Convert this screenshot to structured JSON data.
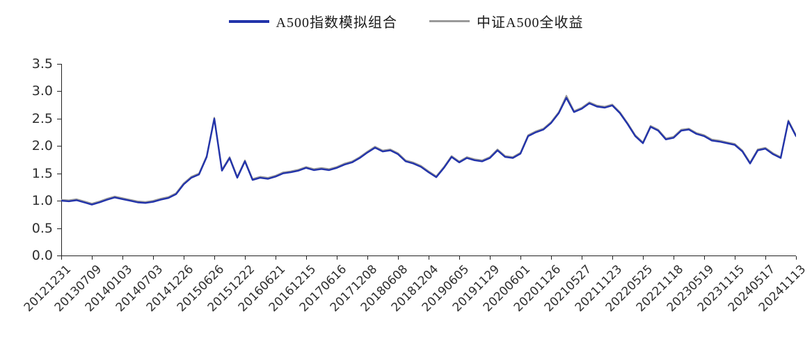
{
  "page": {
    "background": "#ffffff"
  },
  "legend": [
    {
      "label": "A500指数模拟组合",
      "color": "#2233aa"
    },
    {
      "label": "中证A500全收益",
      "color": "#9a9a9a"
    }
  ],
  "chart_data": {
    "type": "line",
    "title": "",
    "xlabel": "",
    "ylabel": "",
    "grid": false,
    "legend_position": "top-center",
    "ylim": [
      0,
      3.5
    ],
    "y_ticks": [
      0.0,
      0.5,
      1.0,
      1.5,
      2.0,
      2.5,
      3.0,
      3.5
    ],
    "x_tick_labels": [
      "20121231",
      "20130709",
      "20140103",
      "20140703",
      "20141226",
      "20150626",
      "20151222",
      "20160621",
      "20161215",
      "20170616",
      "20171208",
      "20180608",
      "20181204",
      "20190605",
      "20191129",
      "20200601",
      "20201126",
      "20210527",
      "20211123",
      "20220525",
      "20221118",
      "20230519",
      "20231115",
      "20240517",
      "20241113"
    ],
    "points_per_interval": 4,
    "series": [
      {
        "name": "中证A500全收益",
        "color": "#9a9a9a",
        "width": 2,
        "values": [
          1.02,
          1.01,
          1.03,
          0.99,
          0.95,
          0.99,
          1.04,
          1.08,
          1.05,
          1.02,
          0.99,
          0.98,
          1.0,
          1.04,
          1.07,
          1.14,
          1.32,
          1.44,
          1.5,
          1.82,
          2.52,
          1.57,
          1.8,
          1.44,
          1.74,
          1.4,
          1.44,
          1.42,
          1.46,
          1.52,
          1.54,
          1.57,
          1.62,
          1.58,
          1.6,
          1.58,
          1.62,
          1.68,
          1.72,
          1.8,
          1.9,
          1.99,
          1.92,
          1.94,
          1.87,
          1.74,
          1.7,
          1.64,
          1.54,
          1.45,
          1.62,
          1.82,
          1.72,
          1.8,
          1.76,
          1.74,
          1.8,
          1.94,
          1.82,
          1.8,
          1.88,
          2.2,
          2.27,
          2.32,
          2.44,
          2.62,
          2.92,
          2.64,
          2.7,
          2.8,
          2.74,
          2.72,
          2.76,
          2.62,
          2.42,
          2.2,
          2.07,
          2.37,
          2.3,
          2.14,
          2.17,
          2.3,
          2.32,
          2.24,
          2.2,
          2.12,
          2.1,
          2.07,
          2.04,
          1.92,
          1.7,
          1.94,
          1.97,
          1.87,
          1.8,
          2.47,
          2.2
        ]
      },
      {
        "name": "A500指数模拟组合",
        "color": "#2233aa",
        "width": 2.4,
        "values": [
          1.0,
          0.99,
          1.01,
          0.97,
          0.93,
          0.97,
          1.02,
          1.06,
          1.03,
          1.0,
          0.97,
          0.96,
          0.98,
          1.02,
          1.05,
          1.12,
          1.3,
          1.42,
          1.48,
          1.8,
          2.5,
          1.55,
          1.78,
          1.42,
          1.72,
          1.38,
          1.42,
          1.4,
          1.44,
          1.5,
          1.52,
          1.55,
          1.6,
          1.56,
          1.58,
          1.56,
          1.6,
          1.66,
          1.7,
          1.78,
          1.88,
          1.97,
          1.9,
          1.92,
          1.85,
          1.72,
          1.68,
          1.62,
          1.52,
          1.43,
          1.6,
          1.8,
          1.7,
          1.78,
          1.74,
          1.72,
          1.78,
          1.92,
          1.8,
          1.78,
          1.86,
          2.18,
          2.25,
          2.3,
          2.42,
          2.6,
          2.88,
          2.62,
          2.68,
          2.78,
          2.72,
          2.7,
          2.74,
          2.6,
          2.4,
          2.18,
          2.05,
          2.35,
          2.28,
          2.12,
          2.15,
          2.28,
          2.3,
          2.22,
          2.18,
          2.1,
          2.08,
          2.05,
          2.02,
          1.9,
          1.68,
          1.92,
          1.95,
          1.85,
          1.78,
          2.45,
          2.18
        ]
      }
    ]
  }
}
